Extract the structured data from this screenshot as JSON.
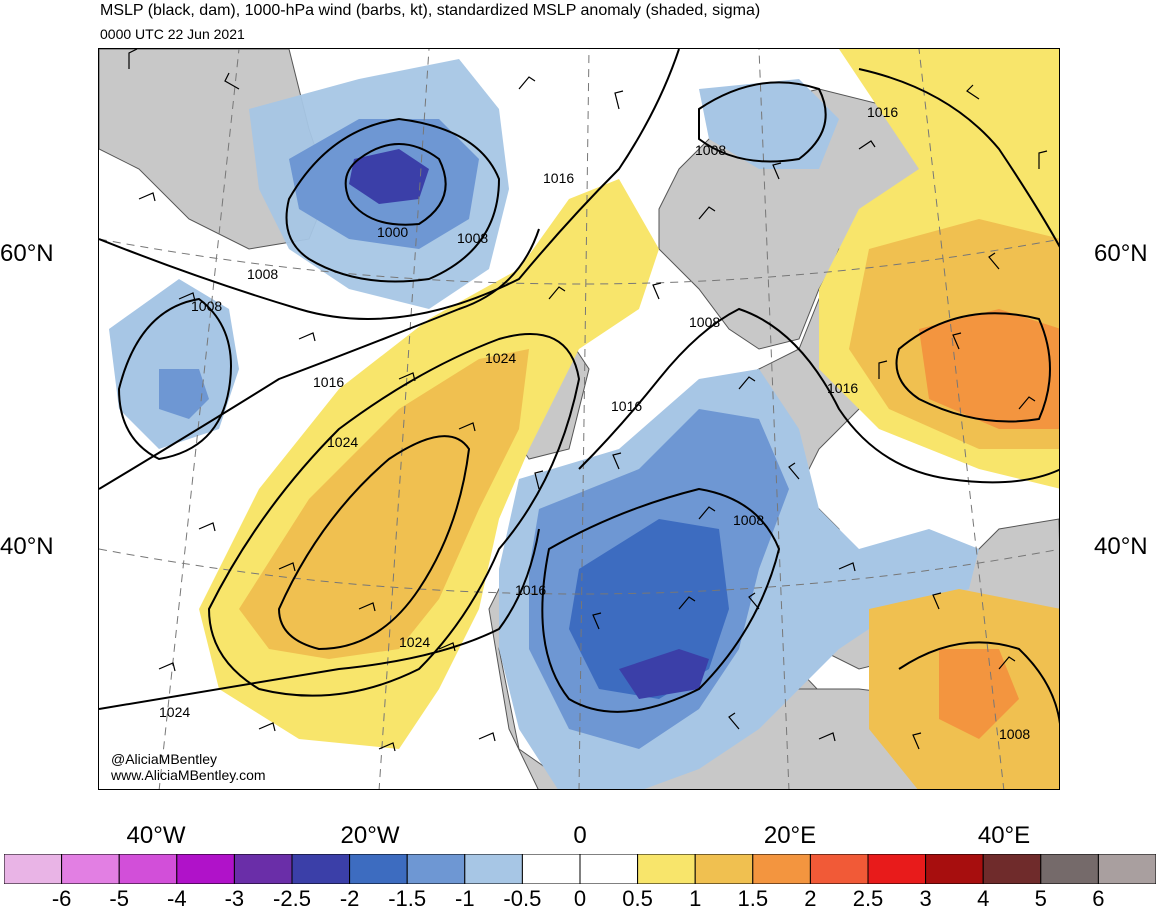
{
  "header": {
    "title": "MSLP (black, dam), 1000-hPa wind (barbs, kt), standardized MSLP anomaly (shaded, sigma)",
    "valid_time": "0000 UTC 22 Jun 2021"
  },
  "axes": {
    "latitude_labels": [
      {
        "text": "60°N",
        "side": "left"
      },
      {
        "text": "60°N",
        "side": "right"
      },
      {
        "text": "40°N",
        "side": "left"
      },
      {
        "text": "40°N",
        "side": "right"
      }
    ],
    "longitude_labels": [
      "40°W",
      "20°W",
      "0",
      "20°E",
      "40°E"
    ]
  },
  "credits": [
    "@AliciaMBentley",
    "www.AliciaMBentley.com"
  ],
  "contour_labels": [
    "1016",
    "1008",
    "1000",
    "1008",
    "1008",
    "1008",
    "1016",
    "1024",
    "1024",
    "1016",
    "1008",
    "1016",
    "1016",
    "1008",
    "1016",
    "1024",
    "1024",
    "1008"
  ],
  "colorbar": {
    "ticks": [
      "-6",
      "-5",
      "-4",
      "-3",
      "-2.5",
      "-2",
      "-1.5",
      "-1",
      "-0.5",
      "0",
      "0.5",
      "1",
      "1.5",
      "2",
      "2.5",
      "3",
      "4",
      "5",
      "6"
    ],
    "colors": [
      "#e9b4e6",
      "#e27fe3",
      "#d24fd9",
      "#b012c9",
      "#6a2ea8",
      "#3b3fa8",
      "#3d6cc0",
      "#6e97d3",
      "#a7c6e5",
      "#ffffff",
      "#ffffff",
      "#f8e56b",
      "#f0c050",
      "#f3953f",
      "#f15a37",
      "#e81b1b",
      "#a70e0e",
      "#6f2b2b",
      "#756a6a",
      "#a99f9f"
    ]
  },
  "palette": {
    "land": "#c8c8c8",
    "contour": "#000000",
    "border": "#555555"
  }
}
